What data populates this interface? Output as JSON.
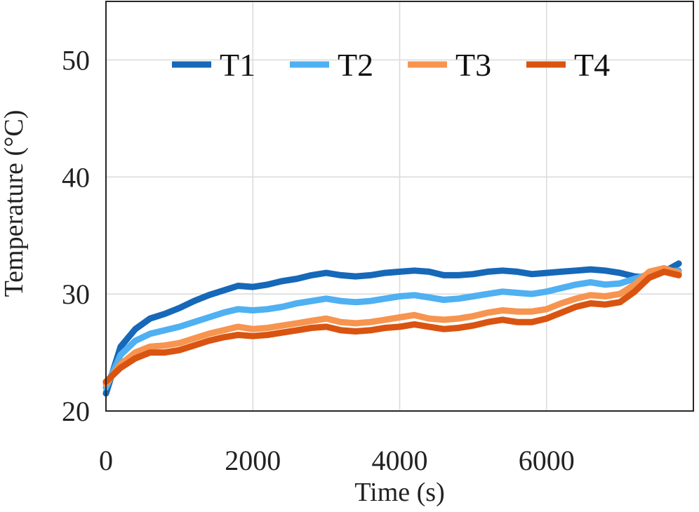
{
  "chart_data": {
    "type": "line",
    "title": "",
    "xlabel": "Time (s)",
    "ylabel": "Temperature (°C)",
    "xlim": [
      0,
      8000
    ],
    "ylim": [
      20,
      55
    ],
    "xticks": [
      0,
      2000,
      4000,
      6000
    ],
    "xtick_labels": [
      "0",
      "2000",
      "4000",
      "6000"
    ],
    "yticks": [
      20,
      30,
      40,
      50
    ],
    "ytick_labels": [
      "20",
      "30",
      "40",
      "50"
    ],
    "grid": true,
    "legend_position": "top, horizontal",
    "series": [
      {
        "name": "T1",
        "color": "#1668b8",
        "x": [
          0,
          200,
          400,
          600,
          800,
          1000,
          1200,
          1400,
          1600,
          1800,
          2000,
          2200,
          2400,
          2600,
          2800,
          3000,
          3200,
          3400,
          3600,
          3800,
          4000,
          4200,
          4400,
          4600,
          4800,
          5000,
          5200,
          5400,
          5600,
          5800,
          6000,
          6200,
          6400,
          6600,
          6800,
          7000,
          7200,
          7400,
          7600,
          7800
        ],
        "values": [
          21.5,
          25.5,
          27.0,
          27.9,
          28.3,
          28.8,
          29.4,
          29.9,
          30.3,
          30.7,
          30.6,
          30.8,
          31.1,
          31.3,
          31.6,
          31.8,
          31.6,
          31.5,
          31.6,
          31.8,
          31.9,
          32.0,
          31.9,
          31.6,
          31.6,
          31.7,
          31.9,
          32.0,
          31.9,
          31.7,
          31.8,
          31.9,
          32.0,
          32.1,
          32.0,
          31.8,
          31.5,
          31.4,
          31.9,
          32.6
        ]
      },
      {
        "name": "T2",
        "color": "#4fb0f2",
        "x": [
          0,
          200,
          400,
          600,
          800,
          1000,
          1200,
          1400,
          1600,
          1800,
          2000,
          2200,
          2400,
          2600,
          2800,
          3000,
          3200,
          3400,
          3600,
          3800,
          4000,
          4200,
          4400,
          4600,
          4800,
          5000,
          5200,
          5400,
          5600,
          5800,
          6000,
          6200,
          6400,
          6600,
          6800,
          7000,
          7200,
          7400,
          7600,
          7800
        ],
        "values": [
          22.0,
          24.8,
          26.0,
          26.6,
          26.9,
          27.2,
          27.6,
          28.0,
          28.4,
          28.7,
          28.6,
          28.7,
          28.9,
          29.2,
          29.4,
          29.6,
          29.4,
          29.3,
          29.4,
          29.6,
          29.8,
          29.9,
          29.7,
          29.5,
          29.6,
          29.8,
          30.0,
          30.2,
          30.1,
          30.0,
          30.2,
          30.5,
          30.8,
          31.0,
          30.8,
          30.9,
          31.3,
          31.7,
          31.9,
          32.0
        ]
      },
      {
        "name": "T3",
        "color": "#f7944f",
        "x": [
          0,
          200,
          400,
          600,
          800,
          1000,
          1200,
          1400,
          1600,
          1800,
          2000,
          2200,
          2400,
          2600,
          2800,
          3000,
          3200,
          3400,
          3600,
          3800,
          4000,
          4200,
          4400,
          4600,
          4800,
          5000,
          5200,
          5400,
          5600,
          5800,
          6000,
          6200,
          6400,
          6600,
          6800,
          7000,
          7200,
          7400,
          7600,
          7800
        ],
        "values": [
          22.3,
          24.0,
          25.0,
          25.5,
          25.6,
          25.8,
          26.2,
          26.6,
          26.9,
          27.2,
          27.0,
          27.1,
          27.3,
          27.5,
          27.7,
          27.9,
          27.6,
          27.5,
          27.6,
          27.8,
          28.0,
          28.2,
          27.9,
          27.8,
          27.9,
          28.1,
          28.4,
          28.6,
          28.5,
          28.5,
          28.7,
          29.2,
          29.6,
          29.9,
          29.8,
          30.0,
          30.8,
          31.9,
          32.2,
          31.8
        ]
      },
      {
        "name": "T4",
        "color": "#d95411",
        "x": [
          0,
          200,
          400,
          600,
          800,
          1000,
          1200,
          1400,
          1600,
          1800,
          2000,
          2200,
          2400,
          2600,
          2800,
          3000,
          3200,
          3400,
          3600,
          3800,
          4000,
          4200,
          4400,
          4600,
          4800,
          5000,
          5200,
          5400,
          5600,
          5800,
          6000,
          6200,
          6400,
          6600,
          6800,
          7000,
          7200,
          7400,
          7600,
          7800
        ],
        "values": [
          22.5,
          23.7,
          24.5,
          25.0,
          25.0,
          25.2,
          25.6,
          26.0,
          26.3,
          26.5,
          26.4,
          26.5,
          26.7,
          26.9,
          27.1,
          27.2,
          26.9,
          26.8,
          26.9,
          27.1,
          27.2,
          27.4,
          27.2,
          27.0,
          27.1,
          27.3,
          27.6,
          27.8,
          27.6,
          27.6,
          27.9,
          28.4,
          28.9,
          29.2,
          29.1,
          29.3,
          30.2,
          31.4,
          31.9,
          31.6
        ]
      }
    ]
  }
}
